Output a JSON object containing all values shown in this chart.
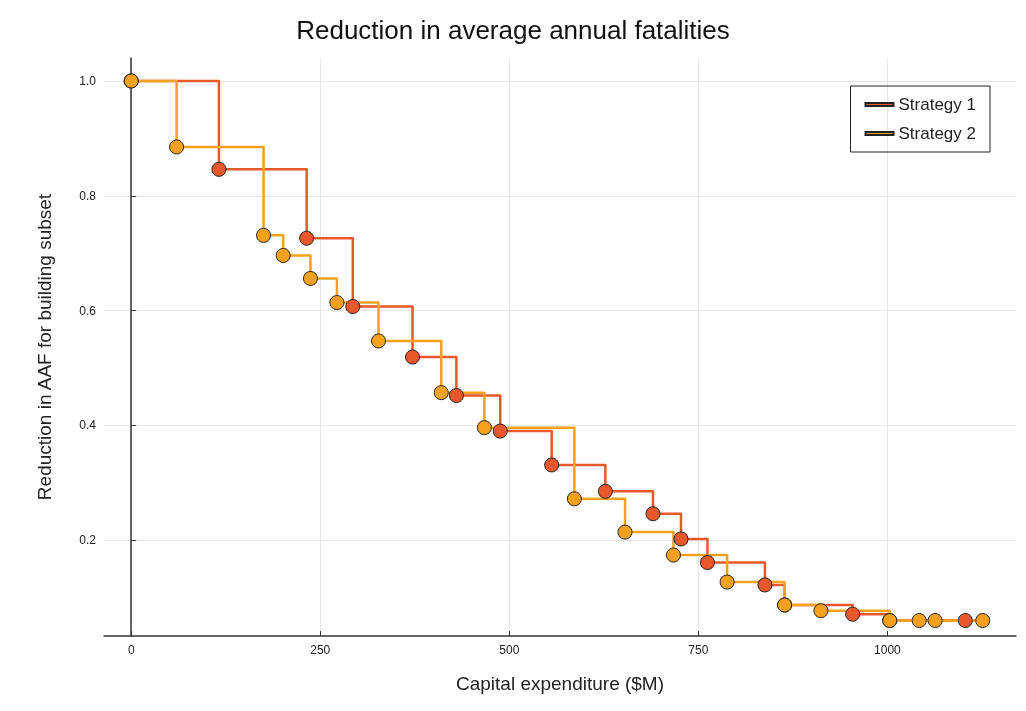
{
  "chart_data": {
    "type": "step",
    "title": "Reduction in average annual fatalities",
    "xlabel": "Capital expenditure ($M)",
    "ylabel": "Reduction in AAF for building subset",
    "series": [
      {
        "name": "Strategy 1",
        "color": "#e9582a",
        "x": [
          0,
          116,
          232,
          293,
          372,
          430,
          488,
          556,
          627,
          690,
          727,
          762,
          838,
          864,
          954,
          1003,
          1103
        ],
        "values": [
          1.0,
          0.846,
          0.726,
          0.607,
          0.519,
          0.452,
          0.39,
          0.331,
          0.285,
          0.246,
          0.202,
          0.161,
          0.122,
          0.087,
          0.071,
          0.06,
          0.06
        ]
      },
      {
        "name": "Strategy 2",
        "color": "#f5a11e",
        "x": [
          0,
          60,
          175,
          201,
          237,
          272,
          327,
          410,
          467,
          586,
          653,
          717,
          788,
          864,
          912,
          1003,
          1042,
          1063,
          1126
        ],
        "values": [
          1.0,
          0.885,
          0.731,
          0.696,
          0.656,
          0.614,
          0.547,
          0.457,
          0.396,
          0.272,
          0.214,
          0.174,
          0.127,
          0.087,
          0.077,
          0.06,
          0.06,
          0.06,
          0.06
        ]
      }
    ],
    "xlim": [
      -36,
      1170
    ],
    "xticks": [
      0,
      250,
      500,
      750,
      1000
    ],
    "ylim": [
      0.033,
      1.04
    ],
    "yticks": [
      0.2,
      0.4,
      0.6,
      0.8,
      {
        "value": 1,
        "label": "1.0"
      }
    ],
    "grid": true,
    "legend": "top right",
    "marker": "circle",
    "line_style": "solid"
  }
}
